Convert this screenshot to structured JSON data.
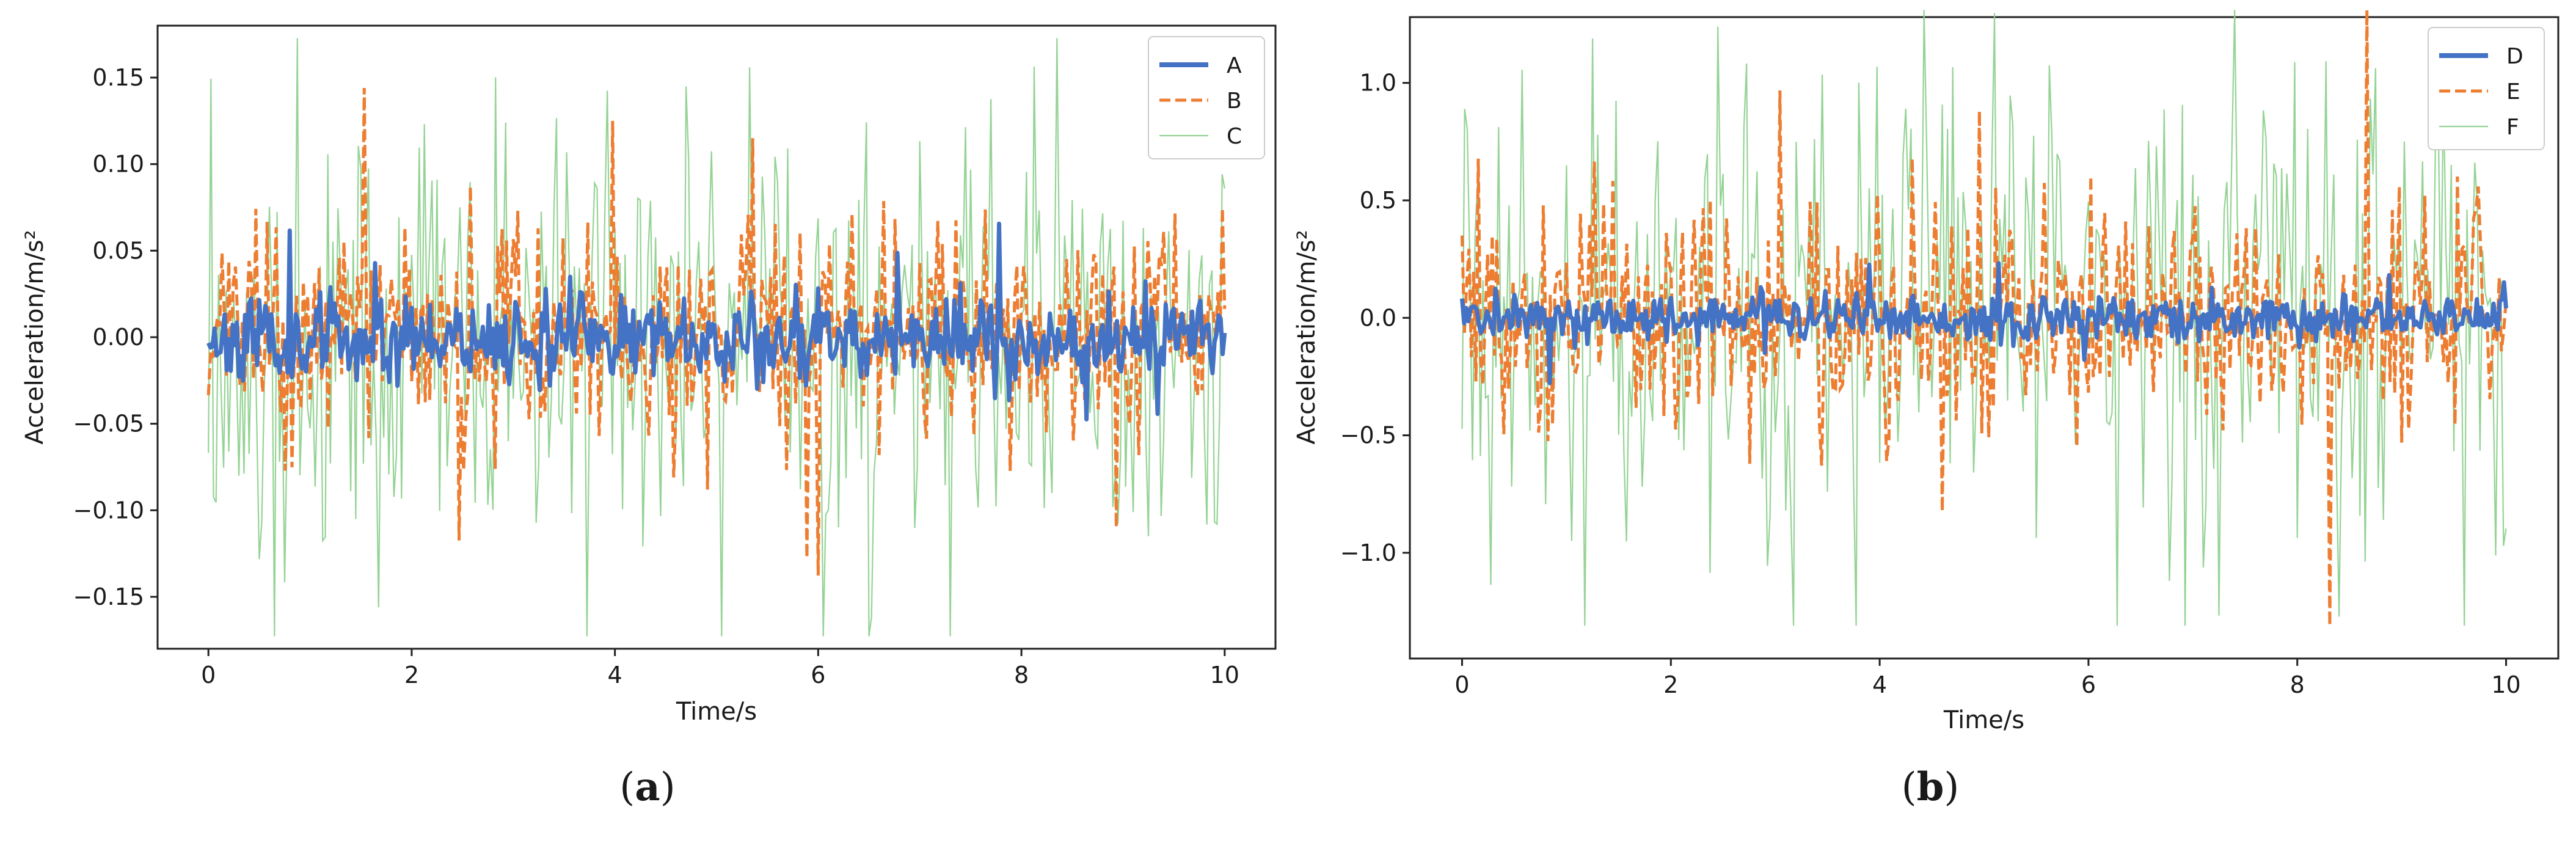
{
  "chart_data": [
    {
      "id": "a",
      "type": "line",
      "caption": "a",
      "xlabel": "Time/s",
      "ylabel": "Acceleration/m/s²",
      "xlim": [
        -0.5,
        10.5
      ],
      "ylim": [
        -0.18,
        0.18
      ],
      "xticks": [
        0,
        2,
        4,
        6,
        8,
        10
      ],
      "yticks": [
        -0.15,
        -0.1,
        -0.05,
        0.0,
        0.05,
        0.1,
        0.15
      ],
      "ytick_labels": [
        "−0.15",
        "−0.10",
        "−0.05",
        "0.00",
        "0.05",
        "0.10",
        "0.15"
      ],
      "grid": false,
      "legend_position": "top-right",
      "series": [
        {
          "name": "A",
          "color": "#4472c4",
          "style": "solid-thick",
          "amplitude": 0.022,
          "bias": 0.0,
          "seed": 11,
          "n": 500
        },
        {
          "name": "B",
          "color": "#ed7d31",
          "style": "dashed",
          "amplitude": 0.055,
          "bias": 0.0,
          "seed": 23,
          "n": 450
        },
        {
          "name": "C",
          "color": "#8fd18f",
          "style": "thin",
          "amplitude": 0.11,
          "bias": 0.0,
          "seed": 37,
          "n": 400
        }
      ]
    },
    {
      "id": "b",
      "type": "line",
      "caption": "b",
      "xlabel": "Time/s",
      "ylabel": "Acceleration/m/s²",
      "xlim": [
        -0.5,
        10.5
      ],
      "ylim": [
        -1.45,
        1.28
      ],
      "xticks": [
        0,
        2,
        4,
        6,
        8,
        10
      ],
      "yticks": [
        -1.0,
        -0.5,
        0.0,
        0.5,
        1.0
      ],
      "ytick_labels": [
        "−1.0",
        "−0.5",
        "0.0",
        "0.5",
        "1.0"
      ],
      "grid": false,
      "legend_position": "top-right",
      "series": [
        {
          "name": "D",
          "color": "#4472c4",
          "style": "solid-thick",
          "amplitude": 0.09,
          "bias": 0.0,
          "seed": 41,
          "n": 500
        },
        {
          "name": "E",
          "color": "#ed7d31",
          "style": "dashed",
          "amplitude": 0.45,
          "bias": 0.0,
          "seed": 53,
          "n": 450
        },
        {
          "name": "F",
          "color": "#8fd18f",
          "style": "thin",
          "amplitude": 0.85,
          "bias": 0.0,
          "seed": 67,
          "n": 400
        }
      ]
    }
  ]
}
